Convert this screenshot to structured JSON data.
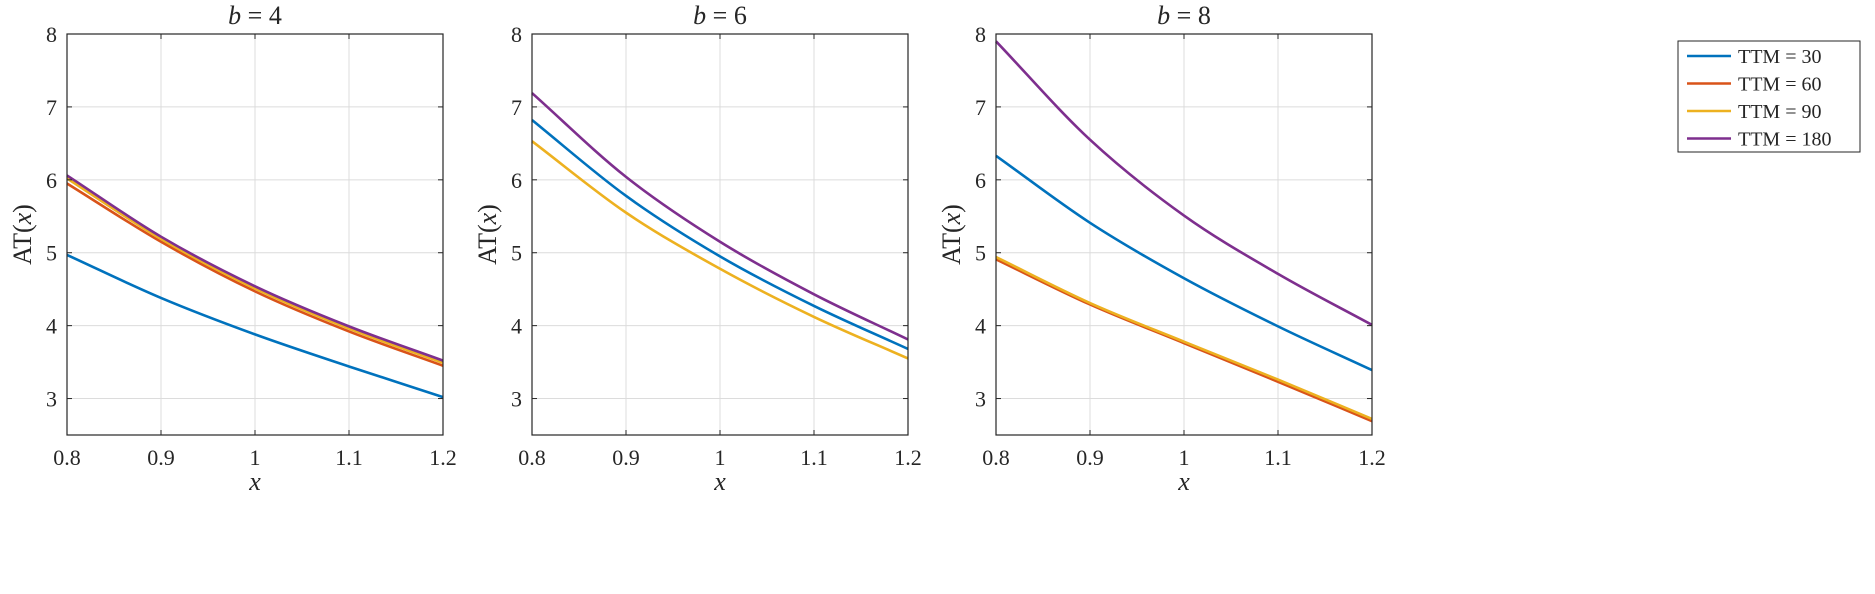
{
  "colors": {
    "TTM = 30": "#0072BD",
    "TTM = 60": "#D95319",
    "TTM = 90": "#EDB120",
    "TTM = 180": "#7E2F8E",
    "grid": "#dcdcdc",
    "axis": "#262626"
  },
  "legend": {
    "placement": "right-outside-top",
    "entries": [
      "TTM = 30",
      "TTM = 60",
      "TTM = 90",
      "TTM = 180"
    ]
  },
  "chart_data": [
    {
      "type": "line",
      "title": "b = 4",
      "title_var": "b",
      "title_value": "4",
      "xlabel": "x",
      "ylabel": "AT(x)",
      "ylabel_prefix": "AT(",
      "ylabel_var": "x",
      "ylabel_suffix": ")",
      "xlim": [
        0.8,
        1.2
      ],
      "ylim": [
        2.5,
        8
      ],
      "xticks": [
        "0.8",
        "0.9",
        "1",
        "1.1",
        "1.2"
      ],
      "yticks": [
        "3",
        "4",
        "5",
        "6",
        "7",
        "8"
      ],
      "grid": true,
      "x": [
        0.8,
        0.9,
        1.0,
        1.1,
        1.2
      ],
      "series": [
        {
          "name": "TTM = 30",
          "values": [
            4.97,
            4.38,
            3.88,
            3.44,
            3.02
          ]
        },
        {
          "name": "TTM = 60",
          "values": [
            5.95,
            5.15,
            4.47,
            3.92,
            3.45
          ]
        },
        {
          "name": "TTM = 90",
          "values": [
            6.02,
            5.19,
            4.51,
            3.96,
            3.49
          ]
        },
        {
          "name": "TTM = 180",
          "values": [
            6.06,
            5.22,
            4.54,
            3.99,
            3.52
          ]
        }
      ]
    },
    {
      "type": "line",
      "title": "b = 6",
      "title_var": "b",
      "title_value": "6",
      "xlabel": "x",
      "ylabel": "AT(x)",
      "ylabel_prefix": "AT(",
      "ylabel_var": "x",
      "ylabel_suffix": ")",
      "xlim": [
        0.8,
        1.2
      ],
      "ylim": [
        2.5,
        8
      ],
      "xticks": [
        "0.8",
        "0.9",
        "1",
        "1.1",
        "1.2"
      ],
      "yticks": [
        "3",
        "4",
        "5",
        "6",
        "7",
        "8"
      ],
      "grid": true,
      "x": [
        0.8,
        0.9,
        1.0,
        1.1,
        1.2
      ],
      "series": [
        {
          "name": "TTM = 30",
          "values": [
            6.82,
            5.78,
            4.95,
            4.27,
            3.68
          ]
        },
        {
          "name": "TTM = 90",
          "values": [
            6.53,
            5.55,
            4.78,
            4.12,
            3.55
          ]
        },
        {
          "name": "TTM = 180",
          "values": [
            7.19,
            6.04,
            5.15,
            4.43,
            3.81
          ]
        }
      ]
    },
    {
      "type": "line",
      "title": "b = 8",
      "title_var": "b",
      "title_value": "8",
      "xlabel": "x",
      "ylabel": "AT(x)",
      "ylabel_prefix": "AT(",
      "ylabel_var": "x",
      "ylabel_suffix": ")",
      "xlim": [
        0.8,
        1.2
      ],
      "ylim": [
        2.5,
        8
      ],
      "xticks": [
        "0.8",
        "0.9",
        "1",
        "1.1",
        "1.2"
      ],
      "yticks": [
        "3",
        "4",
        "5",
        "6",
        "7",
        "8"
      ],
      "grid": true,
      "x": [
        0.8,
        0.9,
        1.0,
        1.1,
        1.2
      ],
      "series": [
        {
          "name": "TTM = 30",
          "values": [
            6.33,
            5.41,
            4.65,
            3.99,
            3.39
          ]
        },
        {
          "name": "TTM = 60",
          "values": [
            4.91,
            4.29,
            3.76,
            3.23,
            2.69
          ]
        },
        {
          "name": "TTM = 90",
          "values": [
            4.94,
            4.31,
            3.78,
            3.26,
            2.72
          ]
        },
        {
          "name": "TTM = 180",
          "values": [
            7.9,
            6.55,
            5.51,
            4.71,
            4.01
          ]
        }
      ]
    }
  ]
}
